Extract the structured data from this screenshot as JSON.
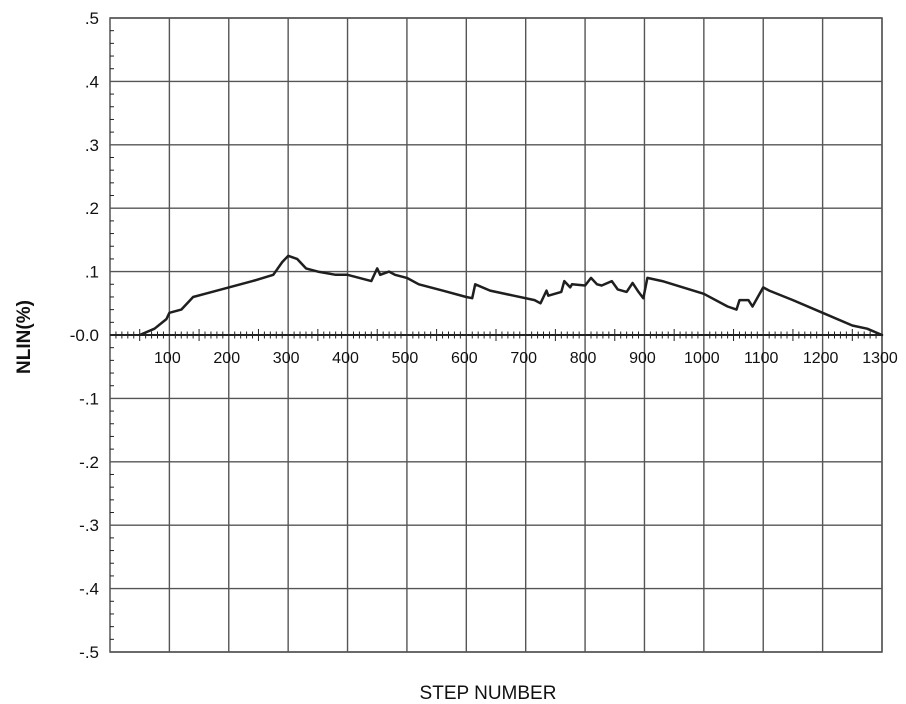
{
  "chart_data": {
    "type": "line",
    "title": "",
    "xlabel": "STEP NUMBER",
    "ylabel": "NLIN(%)",
    "xlim": [
      0,
      1300
    ],
    "ylim": [
      -0.5,
      0.5
    ],
    "grid": true,
    "x_ticks": [
      100,
      200,
      300,
      400,
      500,
      600,
      700,
      800,
      900,
      1000,
      1100,
      1200,
      1300
    ],
    "x_tick_labels": [
      "100",
      "200",
      "300",
      "400",
      "500",
      "600",
      "700",
      "800",
      "900",
      "1000",
      "1100",
      "1200",
      "1300"
    ],
    "y_ticks": [
      0.5,
      0.4,
      0.3,
      0.2,
      0.1,
      0.0,
      -0.1,
      -0.2,
      -0.3,
      -0.4,
      -0.5
    ],
    "y_tick_labels": [
      ".5",
      ".4",
      ".3",
      ".2",
      ".1",
      "-0.0",
      "-.1",
      "-.2",
      "-.3",
      "-.4",
      "-.5"
    ],
    "series": [
      {
        "x": [
          50,
          75,
          95,
          100,
          120,
          135,
          140,
          160,
          200,
          240,
          275,
          290,
          300,
          315,
          330,
          350,
          380,
          400,
          420,
          440,
          450,
          455,
          470,
          480,
          500,
          520,
          560,
          600,
          610,
          615,
          640,
          680,
          715,
          725,
          735,
          738,
          760,
          765,
          775,
          778,
          800,
          810,
          820,
          828,
          845,
          855,
          870,
          880,
          890,
          898,
          905,
          930,
          1000,
          1040,
          1055,
          1060,
          1075,
          1082,
          1100,
          1110,
          1150,
          1200,
          1250,
          1275,
          1300
        ],
        "y": [
          0.0,
          0.01,
          0.025,
          0.035,
          0.04,
          0.055,
          0.06,
          0.065,
          0.075,
          0.085,
          0.095,
          0.115,
          0.125,
          0.12,
          0.105,
          0.1,
          0.095,
          0.095,
          0.09,
          0.085,
          0.105,
          0.095,
          0.1,
          0.095,
          0.09,
          0.08,
          0.07,
          0.06,
          0.058,
          0.08,
          0.07,
          0.062,
          0.055,
          0.05,
          0.07,
          0.062,
          0.068,
          0.085,
          0.075,
          0.08,
          0.078,
          0.09,
          0.08,
          0.078,
          0.085,
          0.072,
          0.068,
          0.082,
          0.068,
          0.058,
          0.09,
          0.085,
          0.065,
          0.045,
          0.04,
          0.055,
          0.055,
          0.045,
          0.075,
          0.07,
          0.055,
          0.035,
          0.015,
          0.01,
          0.0
        ]
      }
    ],
    "colors": {
      "background": "#ffffff",
      "grid": "#555555",
      "axis": "#222222",
      "line": "#1f1f1f",
      "text": "#111111"
    }
  }
}
